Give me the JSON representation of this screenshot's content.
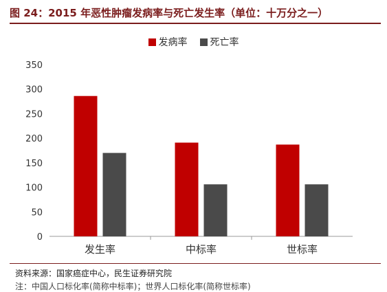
{
  "header": {
    "title": "图 24：2015 年恶性肿瘤发病率与死亡发生率（单位：十万分之一）"
  },
  "footer": {
    "source": "资料来源：国家癌症中心，民生证券研究院",
    "note": "注：中国人口标化率(简称中标率)；世界人口标化率(简称世标率)"
  },
  "chart_data": {
    "type": "bar",
    "categories": [
      "发生率",
      "中标率",
      "世标率"
    ],
    "series": [
      {
        "name": "发病率",
        "values": [
          286,
          191,
          187
        ],
        "color": "#c00000"
      },
      {
        "name": "死亡率",
        "values": [
          170,
          106,
          106
        ],
        "color": "#4a4a4a"
      }
    ],
    "ylim": [
      0,
      350
    ],
    "yticks": [
      0,
      50,
      100,
      150,
      200,
      250,
      300,
      350
    ],
    "legend": "top-center",
    "grid": false
  }
}
